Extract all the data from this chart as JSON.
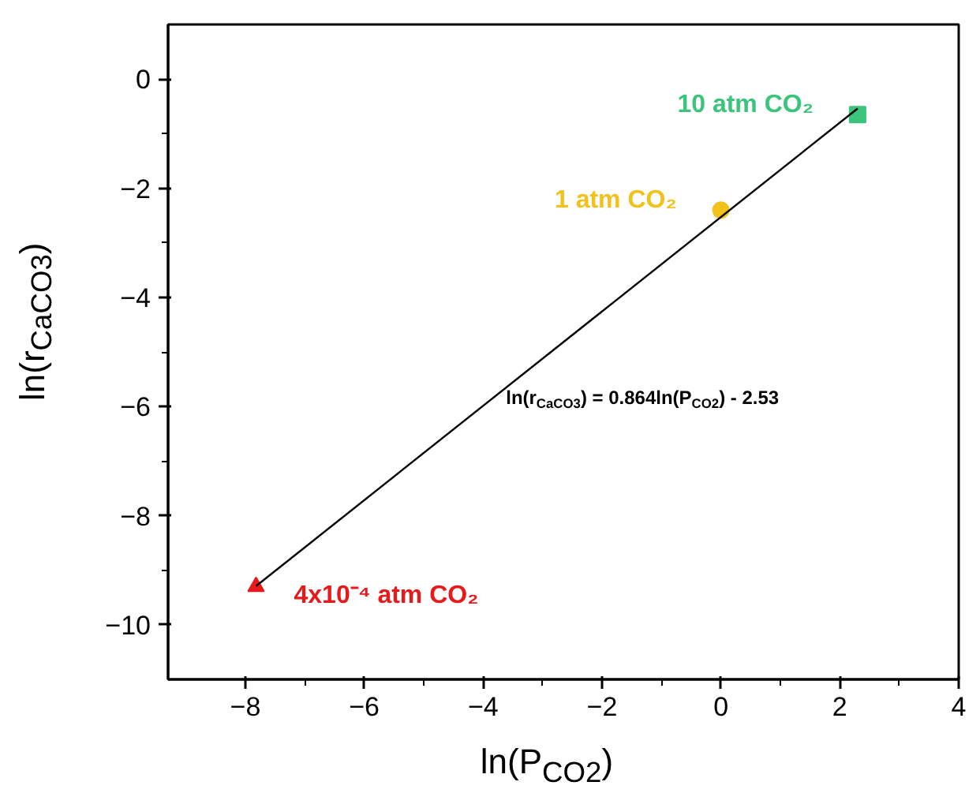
{
  "chart_data": {
    "type": "scatter",
    "xlabel": "ln(P$_{CO2}$)",
    "ylabel": "ln(r$_{CaCO3}$)",
    "xlim": [
      -9.3,
      4
    ],
    "ylim": [
      -11,
      1
    ],
    "xticks": [
      -8,
      -6,
      -4,
      -2,
      0,
      2,
      4
    ],
    "yticks": [
      -10,
      -8,
      -6,
      -4,
      -2,
      0
    ],
    "grid": false,
    "legend": false,
    "series": [
      {
        "name": "4x10⁻⁴ atm CO₂",
        "color": "#e8191a",
        "marker": "triangle",
        "x": [
          -7.82
        ],
        "values": [
          -9.3
        ]
      },
      {
        "name": "1 atm CO₂",
        "color": "#f2c21b",
        "marker": "circle",
        "x": [
          0
        ],
        "values": [
          -2.4
        ]
      },
      {
        "name": "10 atm CO₂",
        "color": "#3cc47c",
        "marker": "square",
        "x": [
          2.3
        ],
        "values": [
          -0.65
        ]
      },
      {
        "type": "line",
        "color": "#000000",
        "marker": "none",
        "x": [
          -7.82,
          2.3
        ],
        "values": [
          -9.29,
          -0.54
        ]
      }
    ],
    "annotations": [
      "ln(r$_{CaCO3}$) = 0.864ln(P$_{CO2}$) - 2.53"
    ]
  }
}
